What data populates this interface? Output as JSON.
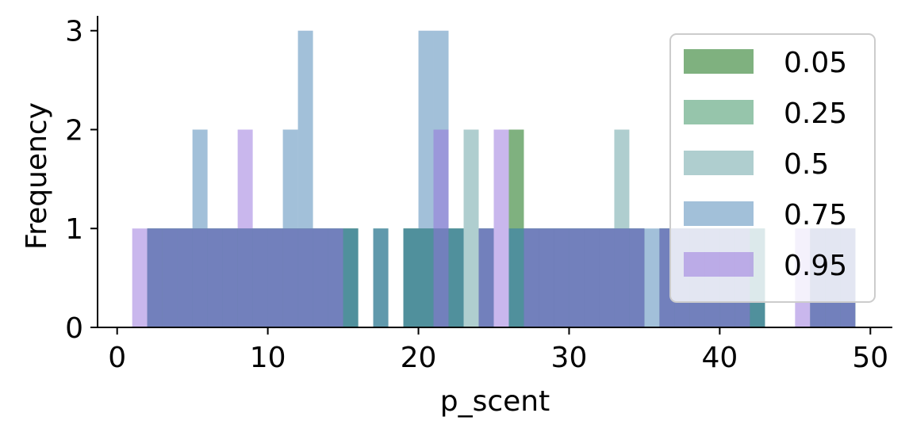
{
  "chart_data": {
    "type": "bar",
    "subtype": "overlaid-histogram",
    "xlabel": "p_scent",
    "ylabel": "Frequency",
    "xlim": [
      -1.3,
      51.3
    ],
    "ylim": [
      0,
      3.15
    ],
    "x_ticks": [
      "0",
      "10",
      "20",
      "30",
      "40",
      "50"
    ],
    "x_tick_values": [
      0,
      10,
      20,
      30,
      40,
      50
    ],
    "y_ticks": [
      "0",
      "1",
      "2",
      "3"
    ],
    "y_tick_values": [
      0,
      1,
      2,
      3
    ],
    "bin_width": 1,
    "grid": false,
    "legend_position": "top-right",
    "bar_alpha": 0.5,
    "series": [
      {
        "name": "0.05",
        "color": "#006400",
        "bins": [
          [
            2,
            1
          ],
          [
            3,
            1
          ],
          [
            4,
            1
          ],
          [
            5,
            1
          ],
          [
            6,
            1
          ],
          [
            7,
            1
          ],
          [
            8,
            1
          ],
          [
            9,
            1
          ],
          [
            10,
            1
          ],
          [
            11,
            1
          ],
          [
            12,
            1
          ],
          [
            13,
            1
          ],
          [
            14,
            1
          ],
          [
            15,
            1
          ],
          [
            19,
            1
          ],
          [
            20,
            1
          ],
          [
            21,
            1
          ],
          [
            22,
            1
          ],
          [
            24,
            1
          ],
          [
            26,
            2
          ],
          [
            27,
            1
          ],
          [
            28,
            1
          ],
          [
            29,
            1
          ],
          [
            30,
            1
          ],
          [
            31,
            1
          ],
          [
            32,
            1
          ],
          [
            33,
            1
          ],
          [
            34,
            1
          ],
          [
            36,
            1
          ],
          [
            37,
            1
          ],
          [
            38,
            1
          ],
          [
            39,
            1
          ],
          [
            40,
            1
          ],
          [
            41,
            1
          ],
          [
            42,
            1
          ],
          [
            46,
            1
          ],
          [
            47,
            1
          ],
          [
            48,
            1
          ]
        ]
      },
      {
        "name": "0.25",
        "color": "#2E8B57",
        "bins": [
          [
            2,
            1
          ],
          [
            3,
            1
          ],
          [
            4,
            1
          ],
          [
            5,
            1
          ],
          [
            6,
            1
          ],
          [
            7,
            1
          ],
          [
            8,
            1
          ],
          [
            9,
            1
          ],
          [
            10,
            1
          ],
          [
            11,
            1
          ],
          [
            12,
            1
          ],
          [
            13,
            1
          ],
          [
            14,
            1
          ],
          [
            15,
            1
          ],
          [
            17,
            1
          ],
          [
            19,
            1
          ],
          [
            20,
            1
          ],
          [
            21,
            1
          ],
          [
            22,
            1
          ],
          [
            24,
            1
          ],
          [
            26,
            1
          ],
          [
            27,
            1
          ],
          [
            28,
            1
          ],
          [
            29,
            1
          ],
          [
            30,
            1
          ],
          [
            31,
            1
          ],
          [
            32,
            1
          ],
          [
            33,
            1
          ],
          [
            34,
            1
          ],
          [
            36,
            1
          ],
          [
            37,
            1
          ],
          [
            38,
            1
          ],
          [
            39,
            1
          ],
          [
            40,
            1
          ],
          [
            41,
            1
          ],
          [
            42,
            1
          ],
          [
            46,
            1
          ],
          [
            47,
            1
          ],
          [
            48,
            1
          ]
        ]
      },
      {
        "name": "0.5",
        "color": "#5F9EA0",
        "bins": [
          [
            2,
            1
          ],
          [
            3,
            1
          ],
          [
            4,
            1
          ],
          [
            5,
            1
          ],
          [
            6,
            1
          ],
          [
            7,
            1
          ],
          [
            8,
            1
          ],
          [
            9,
            1
          ],
          [
            10,
            1
          ],
          [
            11,
            1
          ],
          [
            12,
            1
          ],
          [
            13,
            1
          ],
          [
            14,
            1
          ],
          [
            15,
            1
          ],
          [
            17,
            1
          ],
          [
            19,
            1
          ],
          [
            20,
            1
          ],
          [
            21,
            1
          ],
          [
            22,
            1
          ],
          [
            23,
            2
          ],
          [
            24,
            1
          ],
          [
            26,
            1
          ],
          [
            27,
            1
          ],
          [
            28,
            1
          ],
          [
            29,
            1
          ],
          [
            30,
            1
          ],
          [
            31,
            1
          ],
          [
            32,
            1
          ],
          [
            33,
            2
          ],
          [
            34,
            1
          ],
          [
            36,
            1
          ],
          [
            37,
            1
          ],
          [
            38,
            1
          ],
          [
            39,
            1
          ],
          [
            40,
            1
          ],
          [
            41,
            1
          ],
          [
            42,
            1
          ],
          [
            46,
            1
          ],
          [
            47,
            1
          ],
          [
            48,
            1
          ]
        ]
      },
      {
        "name": "0.75",
        "color": "#4682B4",
        "bins": [
          [
            2,
            1
          ],
          [
            3,
            1
          ],
          [
            4,
            1
          ],
          [
            5,
            2
          ],
          [
            6,
            1
          ],
          [
            7,
            1
          ],
          [
            8,
            1
          ],
          [
            9,
            1
          ],
          [
            10,
            1
          ],
          [
            11,
            2
          ],
          [
            12,
            3
          ],
          [
            13,
            1
          ],
          [
            14,
            1
          ],
          [
            15,
            1
          ],
          [
            17,
            1
          ],
          [
            19,
            1
          ],
          [
            20,
            3
          ],
          [
            21,
            3
          ],
          [
            22,
            1
          ],
          [
            24,
            1
          ],
          [
            26,
            1
          ],
          [
            27,
            1
          ],
          [
            28,
            1
          ],
          [
            29,
            1
          ],
          [
            30,
            1
          ],
          [
            31,
            1
          ],
          [
            32,
            1
          ],
          [
            33,
            1
          ],
          [
            34,
            1
          ],
          [
            35,
            1
          ],
          [
            36,
            1
          ],
          [
            37,
            1
          ],
          [
            38,
            1
          ],
          [
            39,
            1
          ],
          [
            40,
            1
          ],
          [
            41,
            1
          ],
          [
            42,
            1
          ],
          [
            46,
            1
          ],
          [
            47,
            1
          ],
          [
            48,
            1
          ]
        ]
      },
      {
        "name": "0.95",
        "color": "#9370DB",
        "bins": [
          [
            1,
            1
          ],
          [
            2,
            1
          ],
          [
            3,
            1
          ],
          [
            4,
            1
          ],
          [
            5,
            1
          ],
          [
            6,
            1
          ],
          [
            7,
            1
          ],
          [
            8,
            2
          ],
          [
            9,
            1
          ],
          [
            10,
            1
          ],
          [
            11,
            1
          ],
          [
            12,
            1
          ],
          [
            13,
            1
          ],
          [
            14,
            1
          ],
          [
            21,
            2
          ],
          [
            24,
            1
          ],
          [
            25,
            2
          ],
          [
            27,
            1
          ],
          [
            28,
            1
          ],
          [
            29,
            1
          ],
          [
            30,
            1
          ],
          [
            31,
            1
          ],
          [
            32,
            1
          ],
          [
            33,
            1
          ],
          [
            34,
            1
          ],
          [
            36,
            1
          ],
          [
            37,
            1
          ],
          [
            38,
            1
          ],
          [
            39,
            1
          ],
          [
            40,
            1
          ],
          [
            41,
            1
          ],
          [
            45,
            1
          ],
          [
            46,
            1
          ],
          [
            47,
            1
          ],
          [
            48,
            1
          ]
        ]
      }
    ]
  }
}
